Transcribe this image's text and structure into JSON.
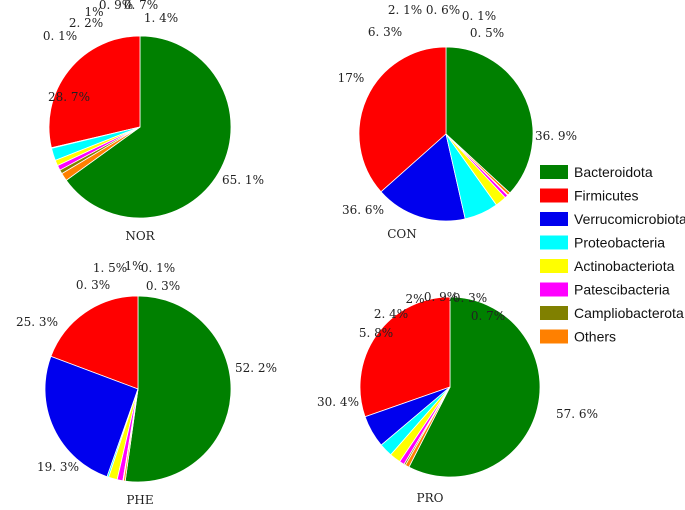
{
  "chart_data": {
    "type": "pie",
    "legend_position": "right",
    "categories": [
      "Bacteroidota",
      "Firmicutes",
      "Verrucomicrobiota",
      "Proteobacteria",
      "Actinobacteriota",
      "Patescibacteria",
      "Campliobacterota",
      "Others"
    ],
    "colors": [
      "#008000",
      "#ff0000",
      "#0000ee",
      "#00ffff",
      "#ffff00",
      "#ff00ff",
      "#808000",
      "#ff8000"
    ],
    "pies": [
      {
        "title": "NOR",
        "values": [
          65.1,
          28.7,
          0.1,
          2.2,
          1.0,
          0.9,
          0.7,
          1.4
        ],
        "labels": [
          "65. 1%",
          "28. 7%",
          "0. 1%",
          "2. 2%",
          "1%",
          "0. 9%",
          "0. 7%",
          "1. 4%"
        ]
      },
      {
        "title": "CON",
        "values": [
          36.9,
          36.6,
          17.0,
          6.3,
          2.1,
          0.6,
          0.1,
          0.5
        ],
        "labels": [
          "36. 9%",
          "36. 6%",
          "17%",
          "6. 3%",
          "2. 1%",
          "0. 6%",
          "0. 1%",
          "0. 5%"
        ]
      },
      {
        "title": "PHE",
        "values": [
          52.2,
          19.3,
          25.3,
          0.3,
          1.5,
          1.0,
          0.1,
          0.3
        ],
        "labels": [
          "52. 2%",
          "19. 3%",
          "25. 3%",
          "0. 3%",
          "1. 5%",
          "1%",
          "0. 1%",
          "0. 3%"
        ]
      },
      {
        "title": "PRO",
        "values": [
          57.6,
          30.4,
          5.8,
          2.4,
          2.0,
          0.9,
          0.3,
          0.7
        ],
        "labels": [
          "57. 6%",
          "30. 4%",
          "5. 8%",
          "2. 4%",
          "2%",
          "0. 9%",
          "0. 3%",
          "0. 7%"
        ]
      }
    ]
  }
}
